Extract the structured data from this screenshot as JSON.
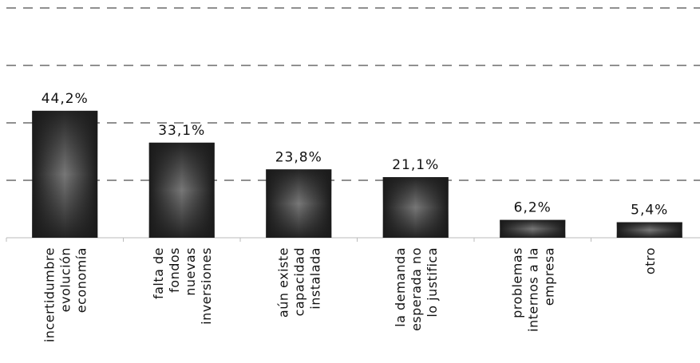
{
  "chart_data": {
    "type": "bar",
    "categories": [
      [
        "incertidumbre",
        "evolución",
        "economía"
      ],
      [
        "falta de",
        "fondos",
        "nuevas",
        "inversiones"
      ],
      [
        "aún existe",
        "capacidad",
        "instalada"
      ],
      [
        "la demanda",
        "esperada no",
        "lo justifica"
      ],
      [
        "problemas",
        "internos a la",
        "empresa"
      ],
      [
        "otro"
      ]
    ],
    "values": [
      44.2,
      33.1,
      23.8,
      21.1,
      6.2,
      5.4
    ],
    "value_labels": [
      "44,2%",
      "33,1%",
      "23,8%",
      "21,1%",
      "6,2%",
      "5,4%"
    ],
    "ylim": [
      0,
      80
    ],
    "gridline_step": 20,
    "grid": true,
    "grid_style": "dashed",
    "bar_color": "#1a1a1a",
    "bar_highlight_color": "#777777",
    "title": "",
    "xlabel": "",
    "ylabel": ""
  }
}
